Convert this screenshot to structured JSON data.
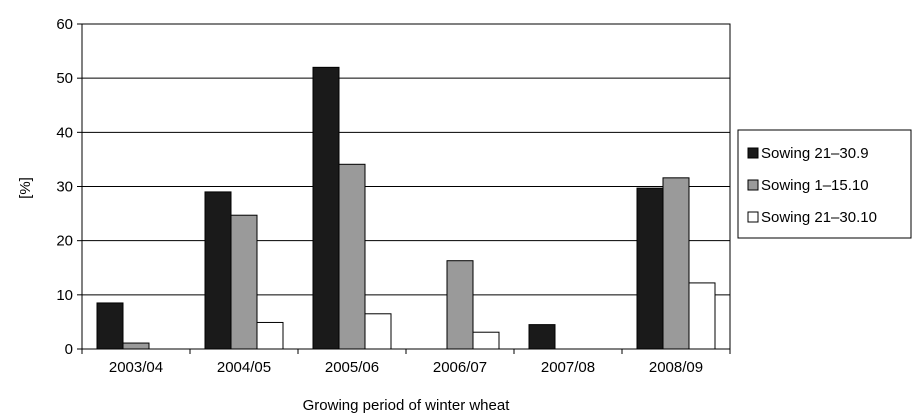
{
  "chart_data": {
    "type": "bar",
    "xlabel": "Growing period of winter wheat",
    "ylabel": "[%]",
    "ylim": [
      0,
      60
    ],
    "yticks": [
      "0",
      "10",
      "20",
      "30",
      "40",
      "50",
      "60"
    ],
    "grid": true,
    "legend_position": "right",
    "categories": [
      "2003/04",
      "2004/05",
      "2005/06",
      "2006/07",
      "2007/08",
      "2008/09"
    ],
    "series": [
      {
        "name": "Sowing 21–30.9",
        "color": "#1a1a1a",
        "values": [
          8.5,
          29,
          52,
          0,
          4.5,
          29.7
        ]
      },
      {
        "name": "Sowing 1–15.10",
        "color": "#9a9a9a",
        "values": [
          1.1,
          24.7,
          34.1,
          16.3,
          0,
          31.6
        ]
      },
      {
        "name": "Sowing 21–30.10",
        "color": "#ffffff",
        "values": [
          0,
          4.9,
          6.5,
          3.1,
          0,
          12.2
        ]
      }
    ]
  }
}
